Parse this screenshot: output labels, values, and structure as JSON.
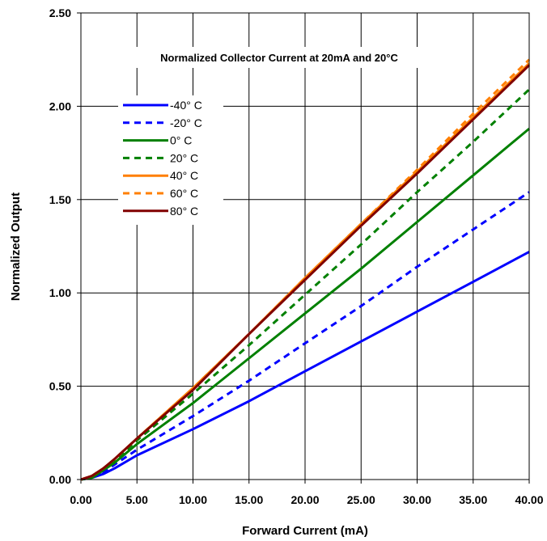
{
  "chart_data": {
    "type": "line",
    "title": "Normalized Collector Current at 20mA and 20°C",
    "xlabel": "Forward Current (mA)",
    "ylabel": "Normalized Output",
    "xlim": [
      0,
      40
    ],
    "ylim": [
      0,
      2.5
    ],
    "x_ticks": [
      "0.00",
      "5.00",
      "10.00",
      "15.00",
      "20.00",
      "25.00",
      "30.00",
      "35.00",
      "40.00"
    ],
    "y_ticks": [
      "0.00",
      "0.50",
      "1.00",
      "1.50",
      "2.00",
      "2.50"
    ],
    "grid": true,
    "legend_position": "upper-left",
    "x": [
      0,
      1,
      2,
      3,
      5,
      10,
      15,
      20,
      25,
      30,
      35,
      40
    ],
    "series": [
      {
        "name": "-40° C",
        "color": "#0000ff",
        "dash": "solid",
        "values": [
          0,
          0.01,
          0.03,
          0.06,
          0.13,
          0.27,
          0.42,
          0.58,
          0.74,
          0.9,
          1.06,
          1.22
        ]
      },
      {
        "name": "-20° C",
        "color": "#0000ff",
        "dash": "dashed",
        "values": [
          0,
          0.01,
          0.04,
          0.08,
          0.16,
          0.34,
          0.53,
          0.73,
          0.93,
          1.14,
          1.34,
          1.54
        ]
      },
      {
        "name": "0° C",
        "color": "#008000",
        "dash": "solid",
        "values": [
          0,
          0.01,
          0.05,
          0.09,
          0.19,
          0.41,
          0.65,
          0.89,
          1.13,
          1.38,
          1.63,
          1.88
        ]
      },
      {
        "name": "20° C",
        "color": "#008000",
        "dash": "dashed",
        "values": [
          0,
          0.01,
          0.05,
          0.1,
          0.21,
          0.46,
          0.72,
          0.99,
          1.26,
          1.54,
          1.81,
          2.09
        ]
      },
      {
        "name": "40° C",
        "color": "#ff7f00",
        "dash": "solid",
        "values": [
          0,
          0.02,
          0.06,
          0.11,
          0.22,
          0.49,
          0.78,
          1.08,
          1.37,
          1.65,
          1.94,
          2.23
        ]
      },
      {
        "name": "60° C",
        "color": "#ff7f00",
        "dash": "dashed",
        "values": [
          0,
          0.02,
          0.06,
          0.11,
          0.22,
          0.49,
          0.78,
          1.08,
          1.37,
          1.66,
          1.96,
          2.25
        ]
      },
      {
        "name": "80° C",
        "color": "#800000",
        "dash": "solid",
        "values": [
          0,
          0.02,
          0.06,
          0.11,
          0.22,
          0.48,
          0.78,
          1.07,
          1.36,
          1.64,
          1.93,
          2.22
        ]
      }
    ]
  }
}
